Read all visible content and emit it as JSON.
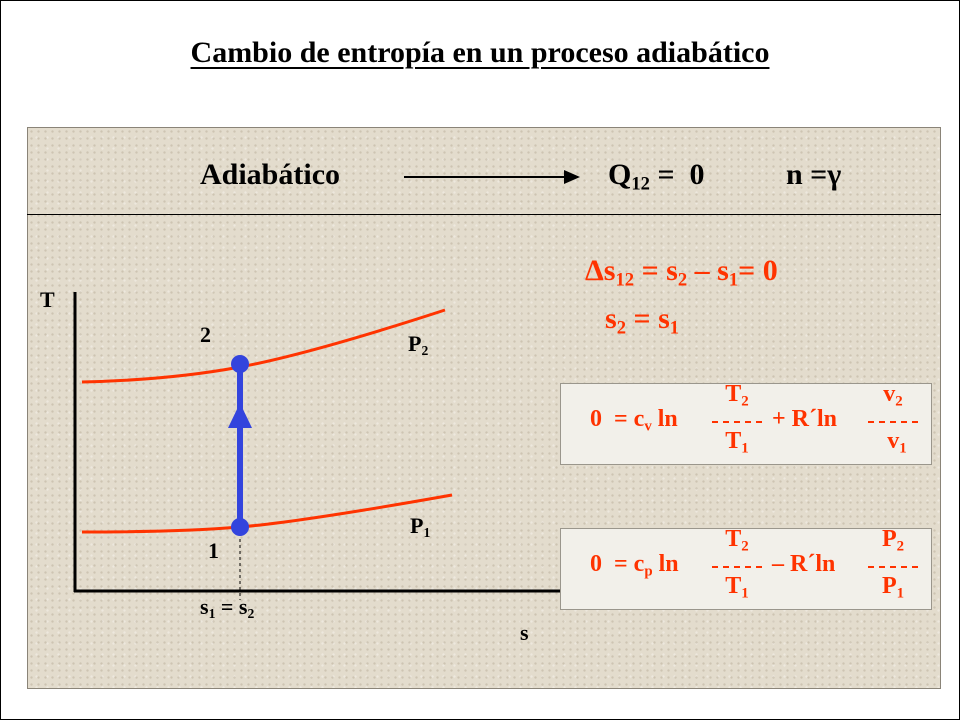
{
  "title": "Cambio de entropía en un proceso adiabático",
  "header": {
    "process": "Adiabático",
    "heat": "Q",
    "heat_sub": "12",
    "heat_value": " =  0",
    "exponent": "n =γ"
  },
  "results": {
    "delta": "Δs",
    "delta_sub": "12",
    "eq_part1": " = s",
    "s2_sub": "2",
    "eq_part2": " – s",
    "s1_sub": "1",
    "eq_part3": "= 0",
    "second_s": "s",
    "second_s_sub": "2",
    "second_mid": " = s",
    "second_s1_sub": "1"
  },
  "eq1": {
    "lead": "0  = c",
    "cv_sub": "v",
    "ln1": " ln",
    "num1": "T",
    "num1_sub": "2",
    "den1": "T",
    "den1_sub": "1",
    "op": "+ R´ln",
    "num2": "v",
    "num2_sub": "2",
    "den2": "v",
    "den2_sub": "1"
  },
  "eq2": {
    "lead": "0  = c",
    "cp_sub": "p",
    "ln1": " ln",
    "num1": "T",
    "num1_sub": "2",
    "den1": "T",
    "den1_sub": "1",
    "op": "– R´ln",
    "num2": "P",
    "num2_sub": "2",
    "den2": "P",
    "den2_sub": "1"
  },
  "diagram": {
    "y_axis": "T",
    "x_axis": "s",
    "state2": "2",
    "state1": "1",
    "isobar_high": "P",
    "isobar_high_sub": "2",
    "isobar_low": "P",
    "isobar_low_sub": "1",
    "equality_s1": "s",
    "equality_s1_sub": "1",
    "equality_mid": " = s",
    "equality_s2_sub": "2"
  },
  "colors": {
    "isobar": "#ff3300",
    "process_line": "#3344dd",
    "formula_text": "#ff3300"
  }
}
